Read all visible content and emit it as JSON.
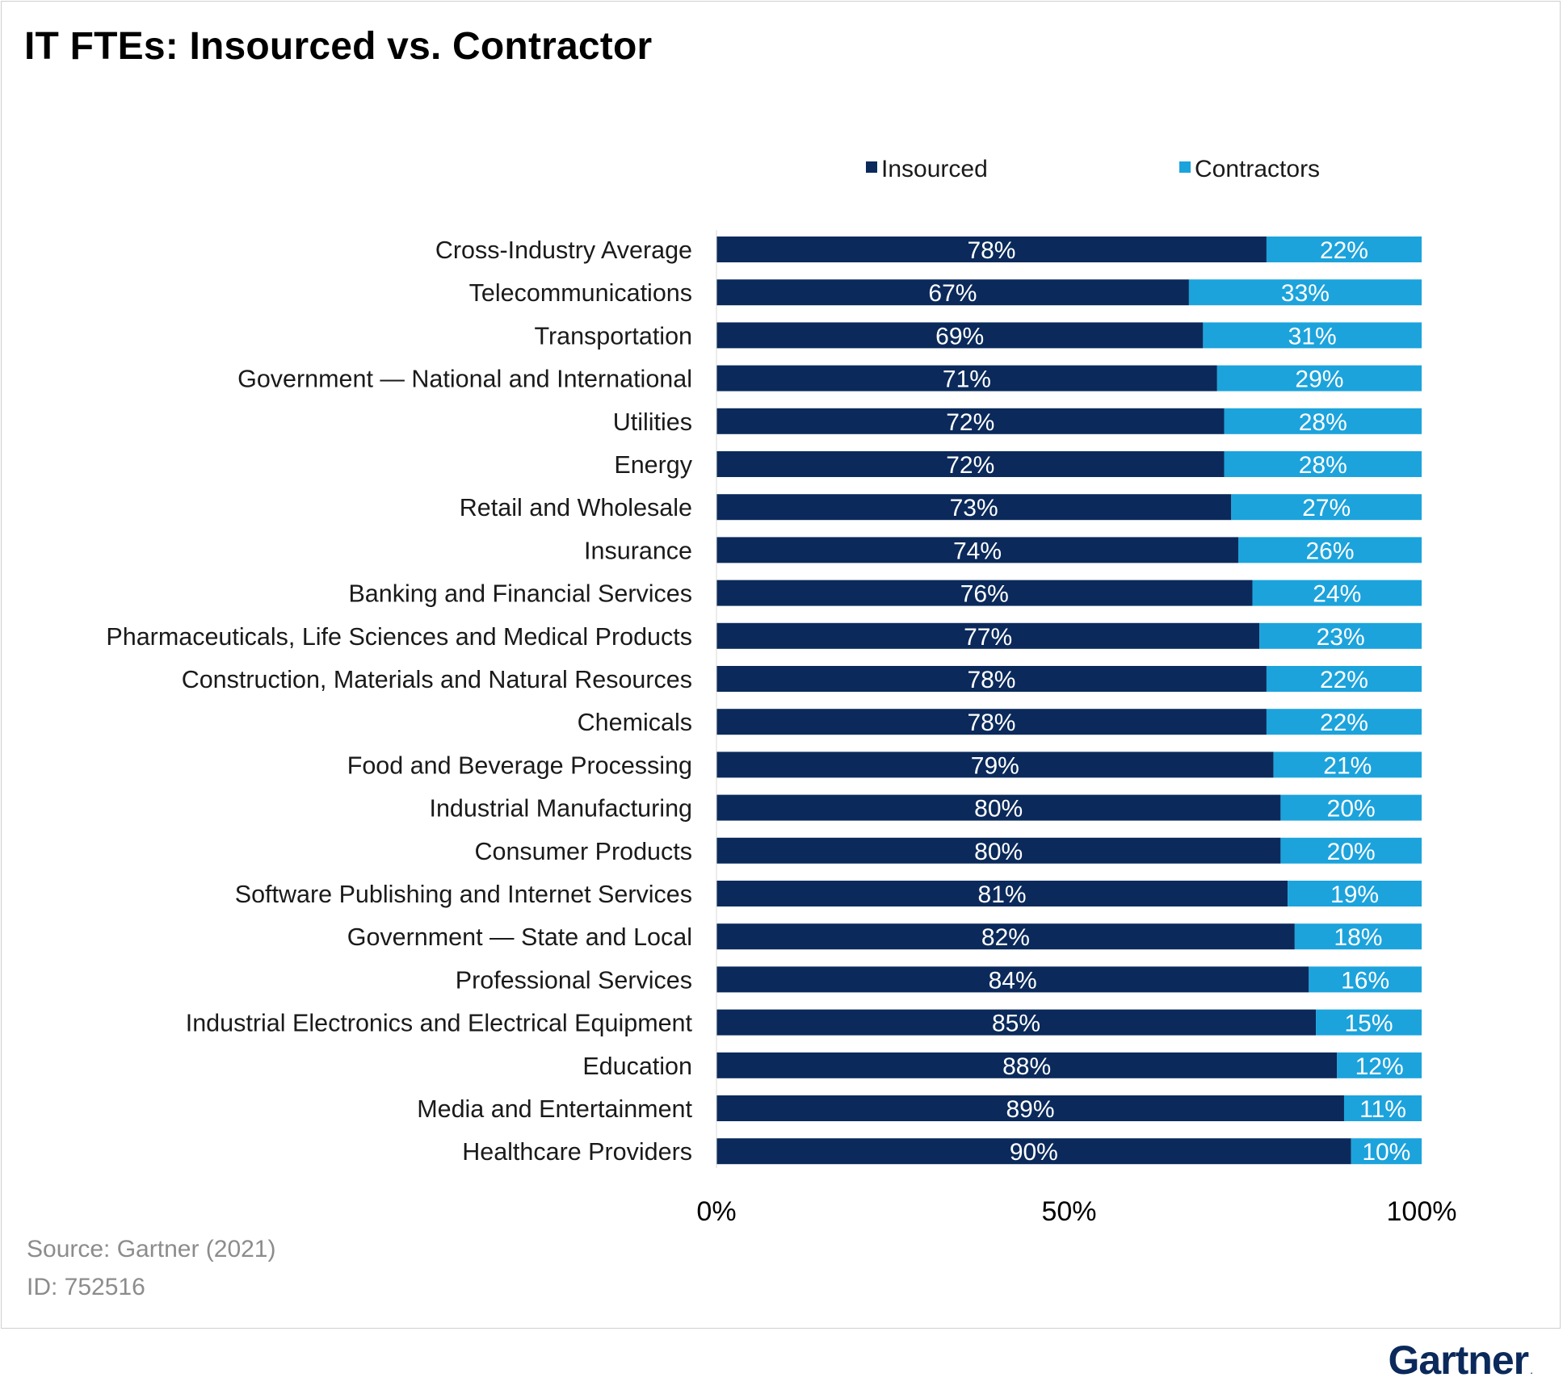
{
  "title": "IT FTEs: Insourced vs. Contractor",
  "source": "Source: Gartner (2021)",
  "doc_id": "ID: 752516",
  "brand": "Gartner",
  "brand_mark": ".",
  "colors": {
    "insourced": "#0b2a5b",
    "contractors": "#1ca3dc",
    "bar_label": "#ffffff",
    "category_label": "#1a1a1a",
    "footer": "#8c8c8c"
  },
  "chart_data": {
    "type": "bar",
    "orientation": "horizontal",
    "stacked": true,
    "categories": [
      "Cross-Industry Average",
      "Telecommunications",
      "Transportation",
      "Government  — National and International",
      "Utilities",
      "Energy",
      "Retail and Wholesale",
      "Insurance",
      "Banking and Financial Services",
      "Pharmaceuticals, Life Sciences and Medical Products",
      "Construction, Materials and Natural Resources",
      "Chemicals",
      "Food and Beverage Processing",
      "Industrial Manufacturing",
      "Consumer Products",
      "Software Publishing and Internet Services",
      "Government  — State and Local",
      "Professional Services",
      "Industrial Electronics and Electrical Equipment",
      "Education",
      "Media and Entertainment",
      "Healthcare Providers"
    ],
    "series": [
      {
        "name": "Insourced",
        "values": [
          78,
          67,
          69,
          71,
          72,
          72,
          73,
          74,
          76,
          77,
          78,
          78,
          79,
          80,
          80,
          81,
          82,
          84,
          85,
          88,
          89,
          90
        ],
        "labels": [
          "78%",
          "67%",
          "69%",
          "71%",
          "72%",
          "72%",
          "73%",
          "74%",
          "76%",
          "77%",
          "78%",
          "78%",
          "79%",
          "80%",
          "80%",
          "81%",
          "82%",
          "84%",
          "85%",
          "88%",
          "89%",
          "90%"
        ]
      },
      {
        "name": "Contractors",
        "values": [
          22,
          33,
          31,
          29,
          28,
          28,
          27,
          26,
          24,
          23,
          22,
          22,
          21,
          20,
          20,
          19,
          18,
          16,
          15,
          12,
          11,
          10
        ],
        "labels": [
          "22%",
          "33%",
          "31%",
          "29%",
          "28%",
          "28%",
          "27%",
          "26%",
          "24%",
          "23%",
          "22%",
          "22%",
          "21%",
          "20%",
          "20%",
          "19%",
          "18%",
          "16%",
          "15%",
          "12%",
          "11%",
          "10%"
        ]
      }
    ],
    "xlim": [
      0,
      100
    ],
    "xticks": [
      0,
      50,
      100
    ],
    "xtick_labels": [
      "0%",
      "50%",
      "100%"
    ],
    "title": "IT FTEs: Insourced vs. Contractor",
    "xlabel": "",
    "ylabel": "",
    "grid": false,
    "legend_position": "top"
  }
}
